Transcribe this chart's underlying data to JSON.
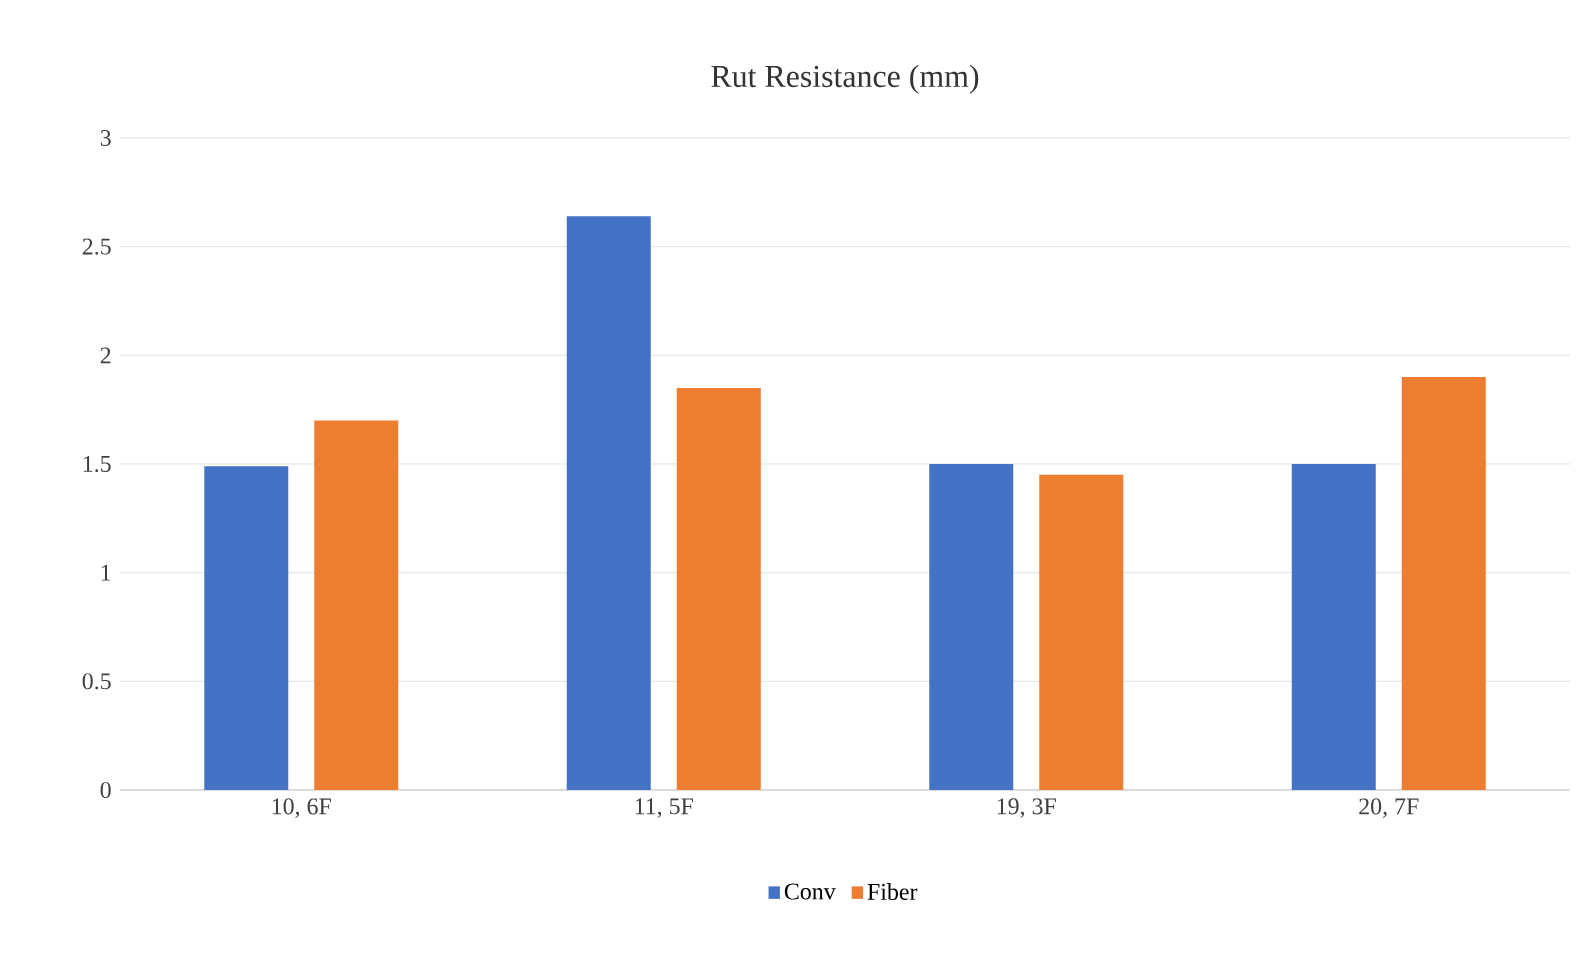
{
  "chart_data": {
    "type": "bar",
    "title": "Rut Resistance (mm)",
    "categories": [
      "10, 6F",
      "11, 5F",
      "19, 3F",
      "20, 7F"
    ],
    "series": [
      {
        "name": "Conv",
        "color": "#4472c4",
        "values": [
          1.49,
          2.64,
          1.5,
          1.5
        ]
      },
      {
        "name": "Fiber",
        "color": "#ed7d31",
        "values": [
          1.7,
          1.85,
          1.45,
          1.9
        ]
      }
    ],
    "ylim": [
      0,
      3
    ],
    "yticks": [
      0,
      0.5,
      1,
      1.5,
      2,
      2.5,
      3
    ],
    "grid": "y",
    "legend": "bottom"
  }
}
